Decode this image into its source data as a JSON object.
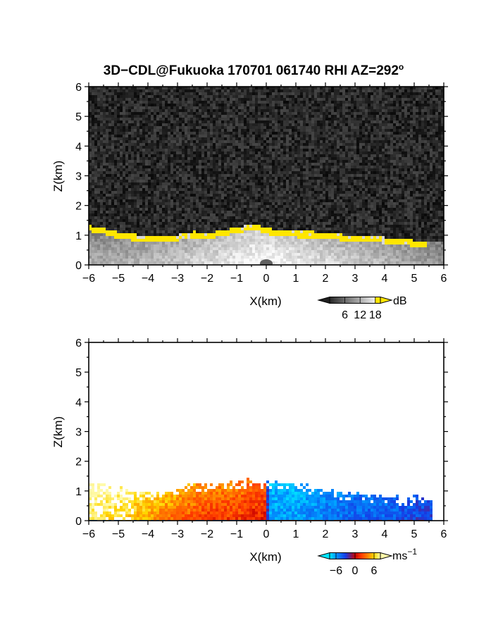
{
  "figure": {
    "title_main": "3D−CDL@Fukuoka 170701 061740 RHI AZ=292",
    "title_sup": "o"
  },
  "chart_data": [
    {
      "type": "heatmap",
      "name": "reflectivity",
      "xlabel": "X(km)",
      "ylabel": "Z(km)",
      "xlim": [
        -6,
        6
      ],
      "ylim": [
        0,
        6
      ],
      "xticks": [
        "−6",
        "−5",
        "−4",
        "−3",
        "−2",
        "−1",
        "0",
        "1",
        "2",
        "3",
        "4",
        "5",
        "6"
      ],
      "yticks": [
        "0",
        "1",
        "2",
        "3",
        "4",
        "5",
        "6"
      ],
      "colorbar": {
        "unit": "dB",
        "ticks": [
          "6",
          "12",
          "18"
        ],
        "range": [
          0,
          20
        ]
      },
      "layer_top_km": [
        [
          -6.0,
          1.35
        ],
        [
          -5.5,
          1.25
        ],
        [
          -5.0,
          1.1
        ],
        [
          -4.5,
          1.05
        ],
        [
          -4.0,
          1.0
        ],
        [
          -3.5,
          1.0
        ],
        [
          -3.0,
          1.05
        ],
        [
          -2.5,
          1.15
        ],
        [
          -2.0,
          1.1
        ],
        [
          -1.5,
          1.2
        ],
        [
          -1.0,
          1.3
        ],
        [
          -0.5,
          1.4
        ],
        [
          0.0,
          1.25
        ],
        [
          0.5,
          1.2
        ],
        [
          1.0,
          1.15
        ],
        [
          1.5,
          1.15
        ],
        [
          2.0,
          1.1
        ],
        [
          2.5,
          1.05
        ],
        [
          3.0,
          1.0
        ],
        [
          3.5,
          1.0
        ],
        [
          4.0,
          0.95
        ],
        [
          4.5,
          0.9
        ],
        [
          5.0,
          0.85
        ],
        [
          5.4,
          0.8
        ]
      ],
      "cloud_color": "#ffe600",
      "background_color": "#1e1e1e"
    },
    {
      "type": "heatmap",
      "name": "radial_velocity",
      "xlabel": "X(km)",
      "ylabel": "Z(km)",
      "xlim": [
        -6,
        6
      ],
      "ylim": [
        0,
        6
      ],
      "xticks": [
        "−6",
        "−5",
        "−4",
        "−3",
        "−2",
        "−1",
        "0",
        "1",
        "2",
        "3",
        "4",
        "5",
        "6"
      ],
      "yticks": [
        "0",
        "1",
        "2",
        "3",
        "4",
        "5",
        "6"
      ],
      "colorbar": {
        "unit": "ms",
        "unit_sup": "−1",
        "ticks": [
          "−6",
          "0",
          "6"
        ],
        "range": [
          -8,
          8
        ]
      },
      "layer_top_km": [
        [
          -6.0,
          1.35
        ],
        [
          -5.5,
          1.25
        ],
        [
          -5.0,
          1.15
        ],
        [
          -4.5,
          1.05
        ],
        [
          -4.0,
          1.0
        ],
        [
          -3.5,
          1.05
        ],
        [
          -3.0,
          1.15
        ],
        [
          -2.5,
          1.3
        ],
        [
          -2.0,
          1.3
        ],
        [
          -1.5,
          1.35
        ],
        [
          -1.0,
          1.4
        ],
        [
          -0.5,
          1.45
        ],
        [
          0.0,
          1.35
        ],
        [
          0.5,
          1.35
        ],
        [
          1.0,
          1.3
        ],
        [
          1.5,
          1.2
        ],
        [
          2.0,
          1.1
        ],
        [
          2.5,
          1.0
        ],
        [
          3.0,
          0.95
        ],
        [
          3.5,
          0.9
        ],
        [
          4.0,
          0.9
        ],
        [
          4.5,
          0.85
        ],
        [
          5.0,
          0.85
        ],
        [
          5.5,
          0.85
        ]
      ],
      "velocity_profile_ms": [
        [
          -6.0,
          7
        ],
        [
          -5.0,
          6
        ],
        [
          -4.0,
          4
        ],
        [
          -3.0,
          3
        ],
        [
          -2.0,
          2
        ],
        [
          -1.0,
          2
        ],
        [
          -0.05,
          1
        ],
        [
          0.05,
          -6
        ],
        [
          1.0,
          -6
        ],
        [
          2.0,
          -5
        ],
        [
          3.0,
          -4
        ],
        [
          4.0,
          -4
        ],
        [
          5.0,
          -3
        ],
        [
          5.5,
          -3
        ]
      ]
    }
  ]
}
